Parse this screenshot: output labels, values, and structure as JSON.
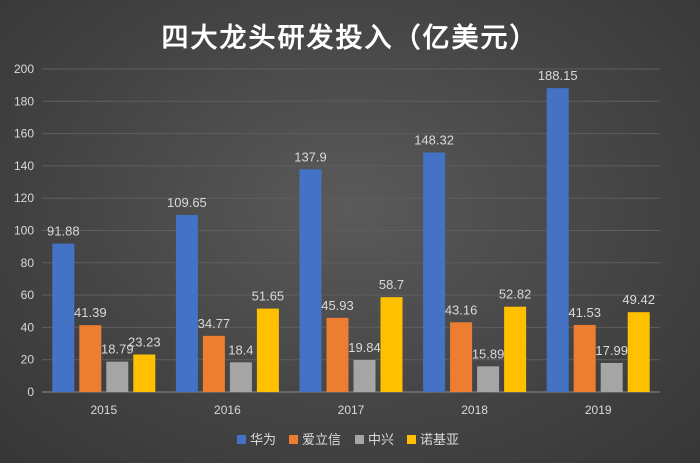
{
  "chart_data": {
    "type": "bar",
    "title": "四大龙头研发投入（亿美元）",
    "categories": [
      "2015",
      "2016",
      "2017",
      "2018",
      "2019"
    ],
    "ylim": [
      0,
      200
    ],
    "yticks": [
      0,
      20,
      40,
      60,
      80,
      100,
      120,
      140,
      160,
      180,
      200
    ],
    "grid": true,
    "legend_position": "bottom",
    "series": [
      {
        "name": "华为",
        "color": "#4472c4",
        "values": [
          91.88,
          109.65,
          137.9,
          148.32,
          188.15
        ]
      },
      {
        "name": "爱立信",
        "color": "#ed7d31",
        "values": [
          41.39,
          34.77,
          45.93,
          43.16,
          41.53
        ]
      },
      {
        "name": "中兴",
        "color": "#a5a5a5",
        "values": [
          18.79,
          18.4,
          19.84,
          15.89,
          17.99
        ]
      },
      {
        "name": "诺基亚",
        "color": "#ffc000",
        "values": [
          23.23,
          51.65,
          58.7,
          52.82,
          49.42
        ]
      }
    ]
  }
}
